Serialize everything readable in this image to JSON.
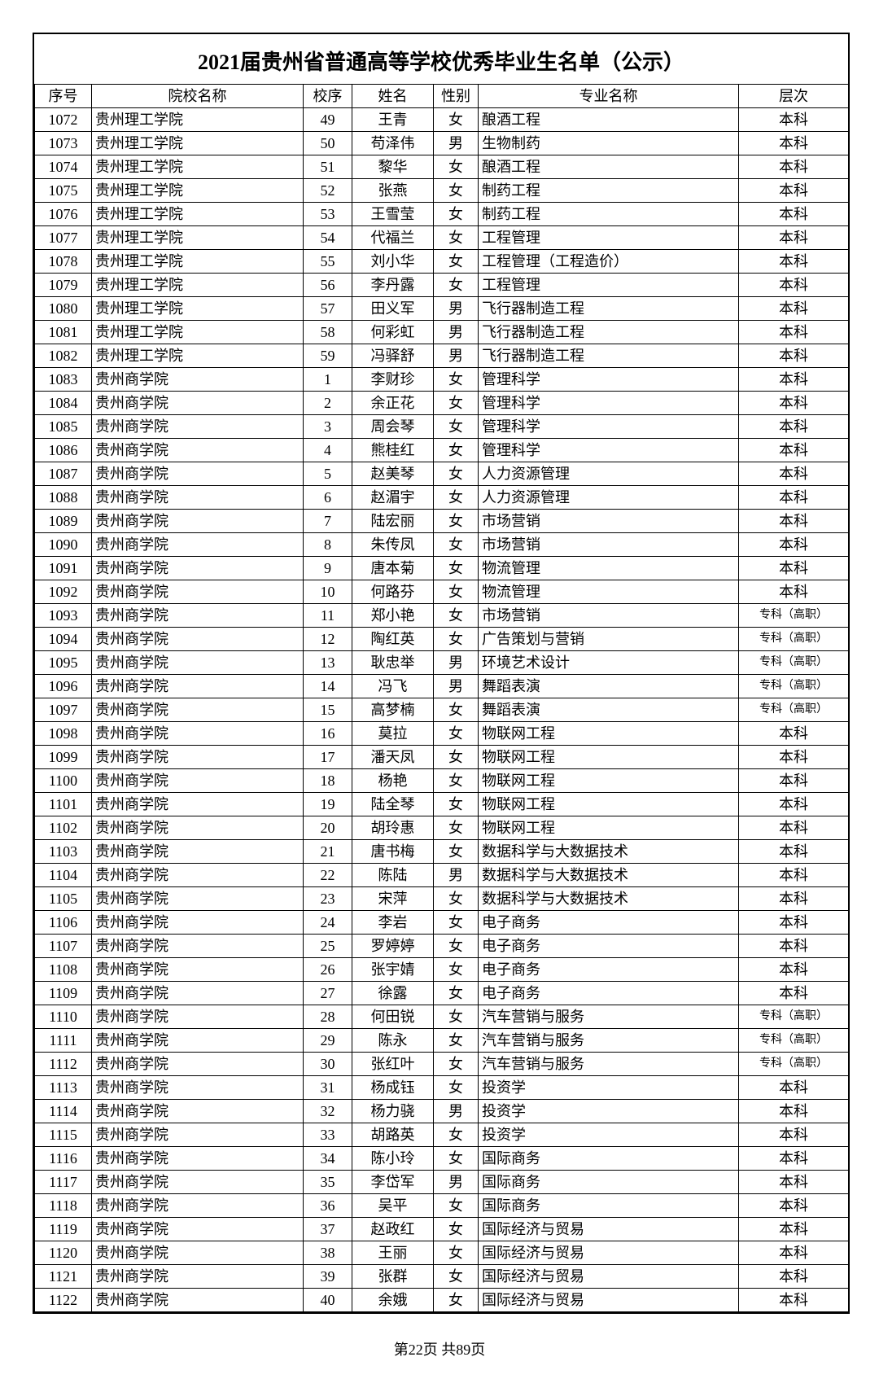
{
  "title": "2021届贵州省普通高等学校优秀毕业生名单（公示）",
  "headers": {
    "seq": "序号",
    "school": "院校名称",
    "order": "校序",
    "name": "姓名",
    "sex": "性别",
    "major": "专业名称",
    "level": "层次"
  },
  "footer": "第22页 共89页",
  "level_small_text": "专科（高职）",
  "rows": [
    {
      "seq": "1072",
      "school": "贵州理工学院",
      "order": "49",
      "name": "王青",
      "sex": "女",
      "major": "酿酒工程",
      "level": "本科"
    },
    {
      "seq": "1073",
      "school": "贵州理工学院",
      "order": "50",
      "name": "苟泽伟",
      "sex": "男",
      "major": "生物制药",
      "level": "本科"
    },
    {
      "seq": "1074",
      "school": "贵州理工学院",
      "order": "51",
      "name": "黎华",
      "sex": "女",
      "major": "酿酒工程",
      "level": "本科"
    },
    {
      "seq": "1075",
      "school": "贵州理工学院",
      "order": "52",
      "name": "张燕",
      "sex": "女",
      "major": "制药工程",
      "level": "本科"
    },
    {
      "seq": "1076",
      "school": "贵州理工学院",
      "order": "53",
      "name": "王雪莹",
      "sex": "女",
      "major": "制药工程",
      "level": "本科"
    },
    {
      "seq": "1077",
      "school": "贵州理工学院",
      "order": "54",
      "name": "代福兰",
      "sex": "女",
      "major": "工程管理",
      "level": "本科"
    },
    {
      "seq": "1078",
      "school": "贵州理工学院",
      "order": "55",
      "name": "刘小华",
      "sex": "女",
      "major": "工程管理（工程造价）",
      "level": "本科"
    },
    {
      "seq": "1079",
      "school": "贵州理工学院",
      "order": "56",
      "name": "李丹露",
      "sex": "女",
      "major": "工程管理",
      "level": "本科"
    },
    {
      "seq": "1080",
      "school": "贵州理工学院",
      "order": "57",
      "name": "田义军",
      "sex": "男",
      "major": "飞行器制造工程",
      "level": "本科"
    },
    {
      "seq": "1081",
      "school": "贵州理工学院",
      "order": "58",
      "name": "何彩虹",
      "sex": "男",
      "major": "飞行器制造工程",
      "level": "本科"
    },
    {
      "seq": "1082",
      "school": "贵州理工学院",
      "order": "59",
      "name": "冯驿舒",
      "sex": "男",
      "major": "飞行器制造工程",
      "level": "本科"
    },
    {
      "seq": "1083",
      "school": "贵州商学院",
      "order": "1",
      "name": "李财珍",
      "sex": "女",
      "major": "管理科学",
      "level": "本科"
    },
    {
      "seq": "1084",
      "school": "贵州商学院",
      "order": "2",
      "name": "余正花",
      "sex": "女",
      "major": "管理科学",
      "level": "本科"
    },
    {
      "seq": "1085",
      "school": "贵州商学院",
      "order": "3",
      "name": "周会琴",
      "sex": "女",
      "major": "管理科学",
      "level": "本科"
    },
    {
      "seq": "1086",
      "school": "贵州商学院",
      "order": "4",
      "name": "熊桂红",
      "sex": "女",
      "major": "管理科学",
      "level": "本科"
    },
    {
      "seq": "1087",
      "school": "贵州商学院",
      "order": "5",
      "name": "赵美琴",
      "sex": "女",
      "major": "人力资源管理",
      "level": "本科"
    },
    {
      "seq": "1088",
      "school": "贵州商学院",
      "order": "6",
      "name": "赵湄宇",
      "sex": "女",
      "major": "人力资源管理",
      "level": "本科"
    },
    {
      "seq": "1089",
      "school": "贵州商学院",
      "order": "7",
      "name": "陆宏丽",
      "sex": "女",
      "major": "市场营销",
      "level": "本科"
    },
    {
      "seq": "1090",
      "school": "贵州商学院",
      "order": "8",
      "name": "朱传凤",
      "sex": "女",
      "major": "市场营销",
      "level": "本科"
    },
    {
      "seq": "1091",
      "school": "贵州商学院",
      "order": "9",
      "name": "唐本菊",
      "sex": "女",
      "major": "物流管理",
      "level": "本科"
    },
    {
      "seq": "1092",
      "school": "贵州商学院",
      "order": "10",
      "name": "何路芬",
      "sex": "女",
      "major": "物流管理",
      "level": "本科"
    },
    {
      "seq": "1093",
      "school": "贵州商学院",
      "order": "11",
      "name": "郑小艳",
      "sex": "女",
      "major": "市场营销",
      "level": "专科（高职）"
    },
    {
      "seq": "1094",
      "school": "贵州商学院",
      "order": "12",
      "name": "陶红英",
      "sex": "女",
      "major": "广告策划与营销",
      "level": "专科（高职）"
    },
    {
      "seq": "1095",
      "school": "贵州商学院",
      "order": "13",
      "name": "耿忠举",
      "sex": "男",
      "major": "环境艺术设计",
      "level": "专科（高职）"
    },
    {
      "seq": "1096",
      "school": "贵州商学院",
      "order": "14",
      "name": "冯飞",
      "sex": "男",
      "major": "舞蹈表演",
      "level": "专科（高职）"
    },
    {
      "seq": "1097",
      "school": "贵州商学院",
      "order": "15",
      "name": "高梦楠",
      "sex": "女",
      "major": "舞蹈表演",
      "level": "专科（高职）"
    },
    {
      "seq": "1098",
      "school": "贵州商学院",
      "order": "16",
      "name": "莫拉",
      "sex": "女",
      "major": "物联网工程",
      "level": "本科"
    },
    {
      "seq": "1099",
      "school": "贵州商学院",
      "order": "17",
      "name": "潘天凤",
      "sex": "女",
      "major": "物联网工程",
      "level": "本科"
    },
    {
      "seq": "1100",
      "school": "贵州商学院",
      "order": "18",
      "name": "杨艳",
      "sex": "女",
      "major": "物联网工程",
      "level": "本科"
    },
    {
      "seq": "1101",
      "school": "贵州商学院",
      "order": "19",
      "name": "陆全琴",
      "sex": "女",
      "major": "物联网工程",
      "level": "本科"
    },
    {
      "seq": "1102",
      "school": "贵州商学院",
      "order": "20",
      "name": "胡玲惠",
      "sex": "女",
      "major": "物联网工程",
      "level": "本科"
    },
    {
      "seq": "1103",
      "school": "贵州商学院",
      "order": "21",
      "name": "唐书梅",
      "sex": "女",
      "major": "数据科学与大数据技术",
      "level": "本科"
    },
    {
      "seq": "1104",
      "school": "贵州商学院",
      "order": "22",
      "name": "陈陆",
      "sex": "男",
      "major": "数据科学与大数据技术",
      "level": "本科"
    },
    {
      "seq": "1105",
      "school": "贵州商学院",
      "order": "23",
      "name": "宋萍",
      "sex": "女",
      "major": "数据科学与大数据技术",
      "level": "本科"
    },
    {
      "seq": "1106",
      "school": "贵州商学院",
      "order": "24",
      "name": "李岩",
      "sex": "女",
      "major": "电子商务",
      "level": "本科"
    },
    {
      "seq": "1107",
      "school": "贵州商学院",
      "order": "25",
      "name": "罗婷婷",
      "sex": "女",
      "major": "电子商务",
      "level": "本科"
    },
    {
      "seq": "1108",
      "school": "贵州商学院",
      "order": "26",
      "name": "张宇婧",
      "sex": "女",
      "major": "电子商务",
      "level": "本科"
    },
    {
      "seq": "1109",
      "school": "贵州商学院",
      "order": "27",
      "name": "徐露",
      "sex": "女",
      "major": "电子商务",
      "level": "本科"
    },
    {
      "seq": "1110",
      "school": "贵州商学院",
      "order": "28",
      "name": "何田锐",
      "sex": "女",
      "major": "汽车营销与服务",
      "level": "专科（高职）"
    },
    {
      "seq": "1111",
      "school": "贵州商学院",
      "order": "29",
      "name": "陈永",
      "sex": "女",
      "major": "汽车营销与服务",
      "level": "专科（高职）"
    },
    {
      "seq": "1112",
      "school": "贵州商学院",
      "order": "30",
      "name": "张红叶",
      "sex": "女",
      "major": "汽车营销与服务",
      "level": "专科（高职）"
    },
    {
      "seq": "1113",
      "school": "贵州商学院",
      "order": "31",
      "name": "杨成钰",
      "sex": "女",
      "major": "投资学",
      "level": "本科"
    },
    {
      "seq": "1114",
      "school": "贵州商学院",
      "order": "32",
      "name": "杨力骁",
      "sex": "男",
      "major": "投资学",
      "level": "本科"
    },
    {
      "seq": "1115",
      "school": "贵州商学院",
      "order": "33",
      "name": "胡路英",
      "sex": "女",
      "major": "投资学",
      "level": "本科"
    },
    {
      "seq": "1116",
      "school": "贵州商学院",
      "order": "34",
      "name": "陈小玲",
      "sex": "女",
      "major": "国际商务",
      "level": "本科"
    },
    {
      "seq": "1117",
      "school": "贵州商学院",
      "order": "35",
      "name": "李岱军",
      "sex": "男",
      "major": "国际商务",
      "level": "本科"
    },
    {
      "seq": "1118",
      "school": "贵州商学院",
      "order": "36",
      "name": "吴平",
      "sex": "女",
      "major": "国际商务",
      "level": "本科"
    },
    {
      "seq": "1119",
      "school": "贵州商学院",
      "order": "37",
      "name": "赵政红",
      "sex": "女",
      "major": "国际经济与贸易",
      "level": "本科"
    },
    {
      "seq": "1120",
      "school": "贵州商学院",
      "order": "38",
      "name": "王丽",
      "sex": "女",
      "major": "国际经济与贸易",
      "level": "本科"
    },
    {
      "seq": "1121",
      "school": "贵州商学院",
      "order": "39",
      "name": "张群",
      "sex": "女",
      "major": "国际经济与贸易",
      "level": "本科"
    },
    {
      "seq": "1122",
      "school": "贵州商学院",
      "order": "40",
      "name": "余娥",
      "sex": "女",
      "major": "国际经济与贸易",
      "level": "本科"
    }
  ]
}
